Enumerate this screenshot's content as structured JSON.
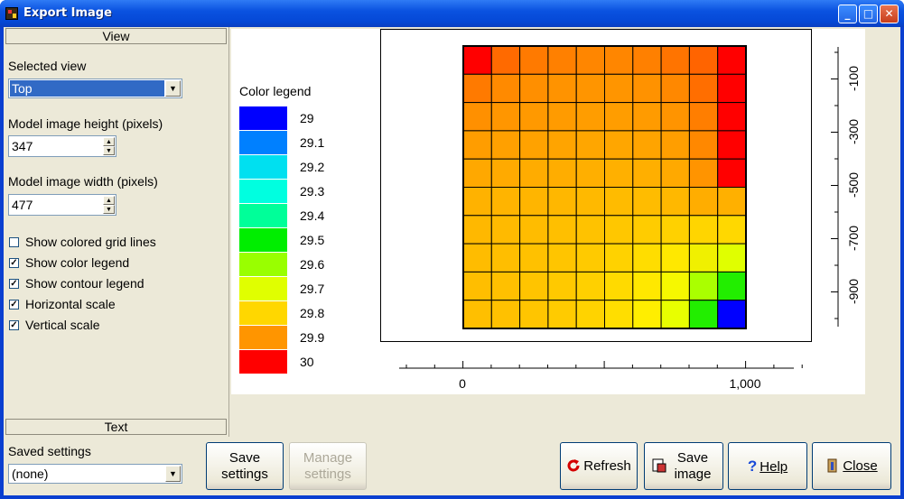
{
  "window": {
    "title": "Export Image",
    "min": "_",
    "max": "□",
    "close": "✕"
  },
  "view_header": "View",
  "text_header": "Text",
  "selected_view": {
    "label": "Selected view",
    "value": "Top"
  },
  "height": {
    "label": "Model image height (pixels)",
    "value": "347"
  },
  "width": {
    "label": "Model image width (pixels)",
    "value": "477"
  },
  "checks": [
    {
      "label": "Show colored grid lines",
      "checked": false
    },
    {
      "label": "Show color legend",
      "checked": true
    },
    {
      "label": "Show contour legend",
      "checked": true
    },
    {
      "label": "Horizontal scale",
      "checked": true
    },
    {
      "label": "Vertical scale",
      "checked": true
    }
  ],
  "saved": {
    "label": "Saved settings",
    "value": "(none)"
  },
  "buttons": {
    "save_settings": "Save settings",
    "manage_settings": "Manage settings",
    "refresh": "Refresh",
    "save_image": "Save image",
    "help": "Help",
    "close": "Close"
  },
  "legend": {
    "title": "Color legend",
    "entries": [
      {
        "value": "29",
        "color": "#0000ff"
      },
      {
        "value": "29.1",
        "color": "#0080ff"
      },
      {
        "value": "29.2",
        "color": "#00e0f0"
      },
      {
        "value": "29.3",
        "color": "#00ffe0"
      },
      {
        "value": "29.4",
        "color": "#00ff99"
      },
      {
        "value": "29.5",
        "color": "#00ee00"
      },
      {
        "value": "29.6",
        "color": "#99ff00"
      },
      {
        "value": "29.7",
        "color": "#e0ff00"
      },
      {
        "value": "29.8",
        "color": "#ffd700"
      },
      {
        "value": "29.9",
        "color": "#ff9500"
      },
      {
        "value": "30",
        "color": "#ff0000"
      }
    ]
  },
  "vertical_scale": [
    "-100",
    "-300",
    "-500",
    "-700",
    "-900"
  ],
  "horizontal_scale": [
    "0",
    "1,000"
  ],
  "grid_colors": [
    [
      "#ff0000",
      "#ff6a00",
      "#ff7a00",
      "#ff8000",
      "#ff8600",
      "#ff8600",
      "#ff8000",
      "#ff7400",
      "#ff6400",
      "#ff0000"
    ],
    [
      "#ff7a00",
      "#ff8a00",
      "#ff8f00",
      "#ff9300",
      "#ff9500",
      "#ff9500",
      "#ff9200",
      "#ff8800",
      "#ff6e00",
      "#ff0000"
    ],
    [
      "#ff9000",
      "#ff9600",
      "#ff9900",
      "#ff9b00",
      "#ff9d00",
      "#ff9d00",
      "#ff9b00",
      "#ff9400",
      "#ff7e00",
      "#ff0000"
    ],
    [
      "#ff9d00",
      "#ffa000",
      "#ffa200",
      "#ffa400",
      "#ffa600",
      "#ffa600",
      "#ffa400",
      "#ff9e00",
      "#ff8800",
      "#ff0000"
    ],
    [
      "#ffa800",
      "#ffaa00",
      "#ffac00",
      "#ffad00",
      "#ffaf00",
      "#ffb000",
      "#ffaf00",
      "#ffa900",
      "#ff9400",
      "#ff0000"
    ],
    [
      "#ffb200",
      "#ffb400",
      "#ffb500",
      "#ffb700",
      "#ffb900",
      "#ffbb00",
      "#ffbc00",
      "#ffb800",
      "#ffad00",
      "#ffb000"
    ],
    [
      "#ffb800",
      "#ffba00",
      "#ffbc00",
      "#ffbf00",
      "#ffc200",
      "#ffc700",
      "#ffcc00",
      "#ffd100",
      "#ffd500",
      "#ffd800"
    ],
    [
      "#ffbc00",
      "#ffbe00",
      "#ffc100",
      "#ffc500",
      "#ffca00",
      "#ffd200",
      "#ffdd00",
      "#ffe800",
      "#f0f000",
      "#e0ff00"
    ],
    [
      "#ffbe00",
      "#ffc000",
      "#ffc400",
      "#ffc900",
      "#ffd000",
      "#ffda00",
      "#ffe800",
      "#f6f800",
      "#aaff00",
      "#22ee00"
    ],
    [
      "#ffbf00",
      "#ffc100",
      "#ffc500",
      "#ffcb00",
      "#ffd300",
      "#ffde00",
      "#ffee00",
      "#e8ff00",
      "#22ee00",
      "#0000ff"
    ]
  ]
}
